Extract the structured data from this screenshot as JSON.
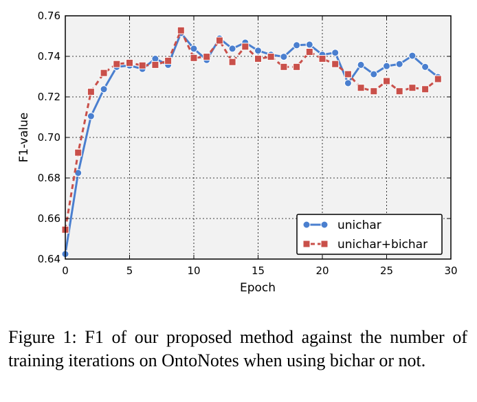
{
  "chart_data": {
    "type": "line",
    "title": "",
    "xlabel": "Epoch",
    "ylabel": "F1-value",
    "xlim": [
      0,
      30
    ],
    "ylim": [
      0.64,
      0.76
    ],
    "xticks": [
      "0",
      "5",
      "10",
      "15",
      "20",
      "25",
      "30"
    ],
    "yticks": [
      "0.64",
      "0.66",
      "0.68",
      "0.70",
      "0.72",
      "0.74",
      "0.76"
    ],
    "grid": true,
    "legend_position": "lower right",
    "series": [
      {
        "name": "unichar",
        "color": "#4a7fcf",
        "marker": "circle",
        "line_style": "solid",
        "x": [
          0,
          1,
          2,
          3,
          4,
          5,
          6,
          7,
          8,
          9,
          10,
          11,
          12,
          13,
          14,
          15,
          16,
          17,
          18,
          19,
          20,
          21,
          22,
          23,
          24,
          25,
          26,
          27,
          28,
          29
        ],
        "values": [
          0.6425,
          0.6825,
          0.7105,
          0.7238,
          0.7348,
          0.7355,
          0.7338,
          0.7388,
          0.7358,
          0.7515,
          0.7438,
          0.7382,
          0.7488,
          0.7438,
          0.7468,
          0.7428,
          0.7408,
          0.7398,
          0.7455,
          0.7458,
          0.7408,
          0.7418,
          0.7268,
          0.7358,
          0.7312,
          0.7352,
          0.7362,
          0.7403,
          0.7348,
          0.7298
        ]
      },
      {
        "name": "unichar+bichar",
        "color": "#c9504a",
        "marker": "square",
        "line_style": "dashed",
        "x": [
          0,
          1,
          2,
          3,
          4,
          5,
          6,
          7,
          8,
          9,
          10,
          11,
          12,
          13,
          14,
          15,
          16,
          17,
          18,
          19,
          20,
          21,
          22,
          23,
          24,
          25,
          26,
          27,
          28,
          29
        ],
        "values": [
          0.6545,
          0.6925,
          0.7225,
          0.7318,
          0.7362,
          0.7368,
          0.7355,
          0.7358,
          0.7378,
          0.7528,
          0.7392,
          0.7398,
          0.7478,
          0.7372,
          0.7448,
          0.7388,
          0.7398,
          0.7348,
          0.7348,
          0.7422,
          0.7388,
          0.7362,
          0.7312,
          0.7245,
          0.7228,
          0.7278,
          0.7228,
          0.7245,
          0.7238,
          0.7288
        ]
      }
    ]
  },
  "caption": "Figure 1:  F1 of our proposed method against the number of training iterations on OntoNotes when using bichar or not."
}
